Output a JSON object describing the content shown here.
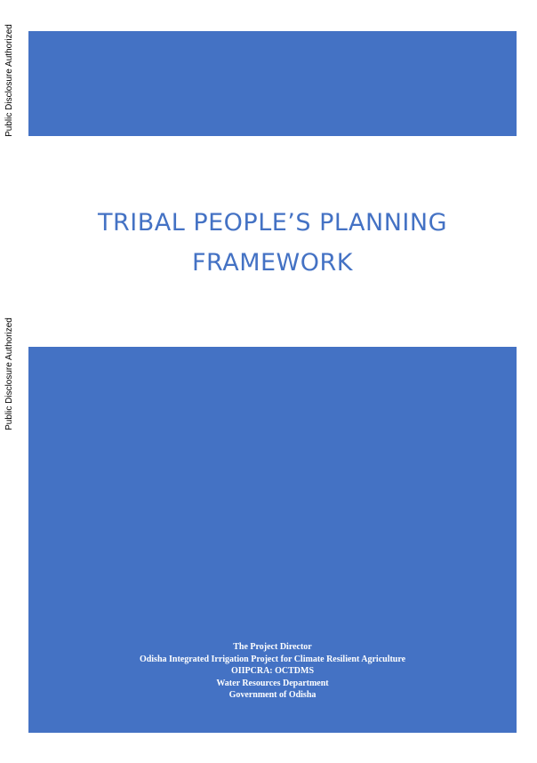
{
  "disclosure": {
    "stamp_top": "Public Disclosure Authorized",
    "stamp_bottom": "Public Disclosure Authorized"
  },
  "cover": {
    "title_line1": "TRIBAL PEOPLE’S PLANNING",
    "title_line2": "FRAMEWORK",
    "address_lines": [
      "The Project Director",
      "Odisha Integrated Irrigation Project for Climate Resilient Agriculture",
      "OIIPCRA: OCTDMS",
      "Water Resources Department",
      "Government of Odisha"
    ]
  },
  "colors": {
    "band": "#4472c4",
    "title": "#4472c4",
    "address_text": "#ffffff"
  }
}
